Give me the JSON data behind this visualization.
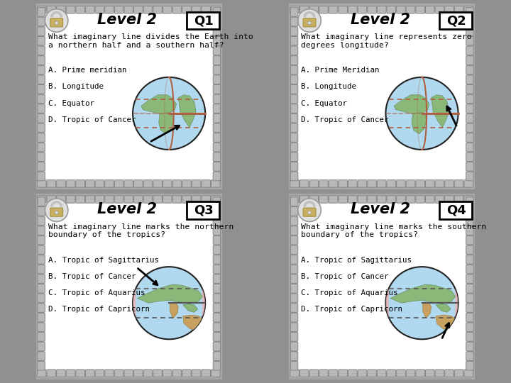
{
  "cards": [
    {
      "q_num": "Q1",
      "level": "Level 2",
      "question": "What imaginary line divides the Earth into\na northern half and a southern half?",
      "answers": [
        "A. Prime meridian",
        "B. Longitude",
        "C. Equator",
        "D. Tropic of Cancer"
      ],
      "globe_type": "equator_arrow_lower"
    },
    {
      "q_num": "Q2",
      "level": "Level 2",
      "question": "What imaginary line represents zero\ndegrees longitude?",
      "answers": [
        "A. Prime Meridian",
        "B. Longitude",
        "C. Equator",
        "D. Tropic of Cancer"
      ],
      "globe_type": "meridian_arrow_right"
    },
    {
      "q_num": "Q3",
      "level": "Level 2",
      "question": "What imaginary line marks the northern\nboundary of the tropics?",
      "answers": [
        "A. Tropic of Sagittarius",
        "B. Tropic of Cancer",
        "C. Tropic of Aquarius",
        "D. Tropic of Capricorn"
      ],
      "globe_type": "tropics_arrow_upper"
    },
    {
      "q_num": "Q4",
      "level": "Level 2",
      "question": "What imaginary line marks the southern\nboundary of the tropics?",
      "answers": [
        "A. Tropic of Sagittarius",
        "B. Tropic of Cancer",
        "C. Tropic of Aquarius",
        "D. Tropic of Capricorn"
      ],
      "globe_type": "tropics_arrow_lower"
    }
  ],
  "ocean_color": "#b0d8ee",
  "land_green": "#8ab878",
  "land_brown": "#c8a060",
  "line_color": "#b06040",
  "chain_color": "#b8b8b8",
  "chain_dark": "#888888",
  "card_bg": "#ffffff",
  "outer_bg": "#a0a0a0"
}
